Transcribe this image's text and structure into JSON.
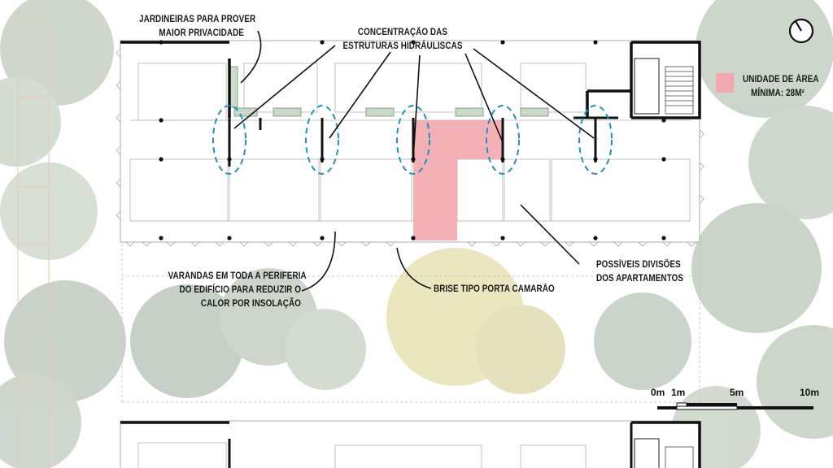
{
  "annotations": {
    "planters": {
      "lines": [
        "JARDINEIRAS PARA PROVER",
        "MAIOR PRIVACIDADE"
      ]
    },
    "hydraulics": {
      "lines": [
        "CONCENTRAÇÃO DAS",
        "ESTRUTURAS HIDRÁULISCAS"
      ]
    },
    "verandas": {
      "lines": [
        "VARANDAS EM TODA A PERIFERIA",
        "DO EDIFÍCIO PARA REDUZIR O",
        "CALOR POR INSOLAÇÃO"
      ]
    },
    "brise": {
      "lines": [
        "BRISE TIPO PORTA CAMARÃO"
      ]
    },
    "divisions": {
      "lines": [
        "POSSÍVEIS DIVISÕES",
        "DOS APARTAMENTOS"
      ]
    }
  },
  "legend": {
    "swatch_color": "#f2a8ae",
    "lines": [
      "UNIDADE DE ÁREA",
      "MÍNIMA: 28M²"
    ]
  },
  "scale_bar": {
    "labels": [
      "0m",
      "1m",
      "5m",
      "10m"
    ]
  },
  "icons": {
    "north": "north-arrow-icon"
  },
  "colors": {
    "wall": "#111111",
    "hydraulic_marker": "#1f8fc4",
    "unit_area": "#f2a8ae",
    "tree": "#8fa88e",
    "tree_yellow": "#d9cf7e",
    "glass": "#b9cdb8"
  }
}
